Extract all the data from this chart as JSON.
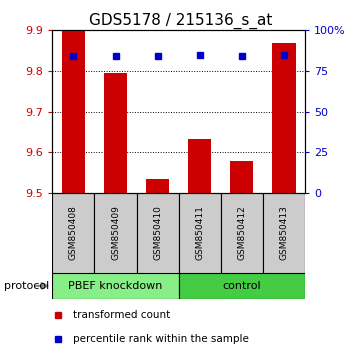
{
  "title": "GDS5178 / 215136_s_at",
  "samples": [
    "GSM850408",
    "GSM850409",
    "GSM850410",
    "GSM850411",
    "GSM850412",
    "GSM850413"
  ],
  "red_values": [
    9.9,
    9.795,
    9.533,
    9.632,
    9.578,
    9.868
  ],
  "blue_percentiles": [
    84,
    84,
    84,
    85,
    84,
    85
  ],
  "y_min": 9.5,
  "y_max": 9.9,
  "y_ticks_left": [
    9.5,
    9.6,
    9.7,
    9.8,
    9.9
  ],
  "y_ticks_right": [
    0,
    25,
    50,
    75,
    100
  ],
  "y_ticks_right_labels": [
    "0",
    "25",
    "50",
    "75",
    "100%"
  ],
  "groups": [
    {
      "label": "PBEF knockdown",
      "indices": [
        0,
        1,
        2
      ],
      "color": "#88ee88"
    },
    {
      "label": "control",
      "indices": [
        3,
        4,
        5
      ],
      "color": "#44cc44"
    }
  ],
  "sample_box_color": "#cccccc",
  "bar_color": "#cc0000",
  "dot_color": "#0000cc",
  "bar_width": 0.55,
  "protocol_label": "protocol",
  "legend_items": [
    {
      "color": "#cc0000",
      "label": "transformed count"
    },
    {
      "color": "#0000cc",
      "label": "percentile rank within the sample"
    }
  ],
  "background_color": "#ffffff",
  "plot_bg": "#ffffff",
  "tick_label_color_left": "#cc0000",
  "tick_label_color_right": "#0000cc",
  "title_fontsize": 11
}
